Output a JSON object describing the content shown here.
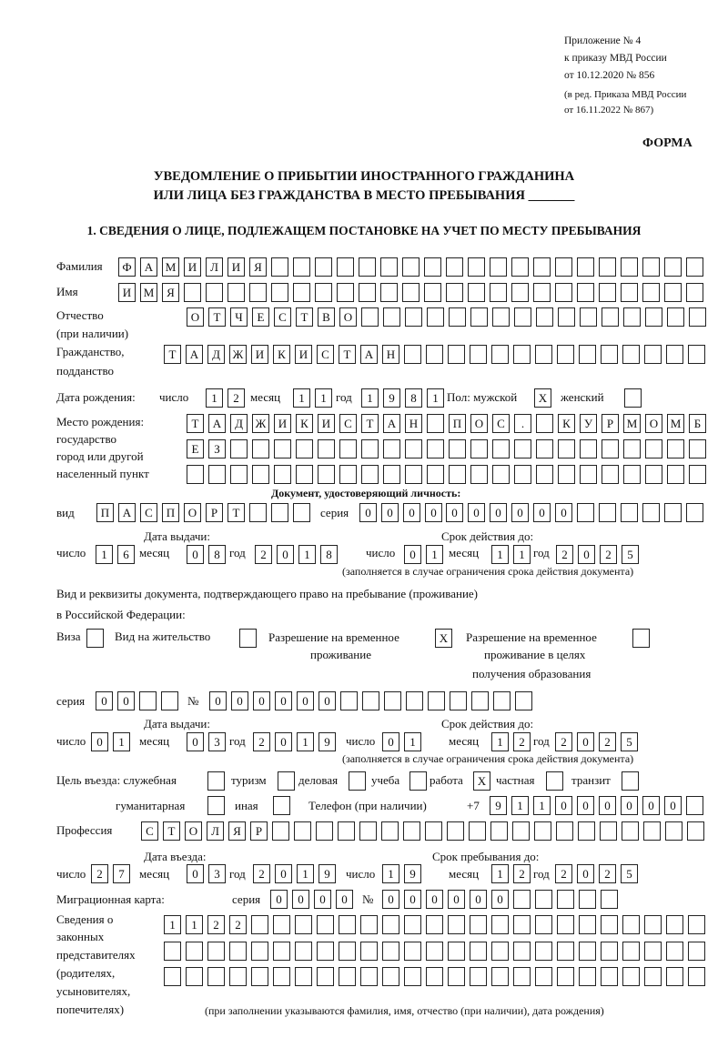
{
  "header": {
    "line1": "Приложение № 4",
    "line2": "к приказу МВД России",
    "line3": "от 10.12.2020 № 856",
    "line4": "(в ред. Приказа МВД России",
    "line5": "от 16.11.2022 № 867)",
    "form_label": "ФОРМА"
  },
  "title": {
    "line1": "УВЕДОМЛЕНИЕ О ПРИБЫТИИ ИНОСТРАННОГО ГРАЖДАНИНА",
    "line2": "ИЛИ ЛИЦА БЕЗ ГРАЖДАНСТВА В МЕСТО ПРЕБЫВАНИЯ _______"
  },
  "section1": "1. СВЕДЕНИЯ О ЛИЦЕ, ПОДЛЕЖАЩЕМ ПОСТАНОВКЕ НА УЧЕТ ПО МЕСТУ ПРЕБЫВАНИЯ",
  "labels": {
    "surname": "Фамилия",
    "name": "Имя",
    "patronymic": "Отчество",
    "patronymic2": "(при наличии)",
    "citizenship": "Гражданство,",
    "citizenship2": "подданство",
    "dob": "Дата рождения:",
    "day": "число",
    "month": "месяц",
    "year": "год",
    "sex": "Пол: мужской",
    "female": "женский",
    "pob1": "Место рождения:",
    "pob2": "государство",
    "pob3": "город или другой",
    "pob4": "населенный пункт",
    "id_doc": "Документ, удостоверяющий личность:",
    "kind": "вид",
    "series": "серия",
    "number": "№",
    "issue_date": "Дата выдачи:",
    "valid_until": "Срок действия до:",
    "validity_note": "(заполняется в случае ограничения срока действия документа)",
    "right_doc1": "Вид и реквизиты документа, подтверждающего право на пребывание (проживание)",
    "right_doc2": "в Российской Федерации:",
    "visa": "Виза",
    "residence": "Вид на жительство",
    "trp1": "Разрешение на временное",
    "trp2": "проживание",
    "trp_edu1": "Разрешение на временное",
    "trp_edu2": "проживание в целях",
    "trp_edu3": "получения образования",
    "purpose": "Цель въезда: служебная",
    "tourism": "туризм",
    "business": "деловая",
    "study": "учеба",
    "work": "работа",
    "private": "частная",
    "transit": "транзит",
    "humanitarian": "гуманитарная",
    "other": "иная",
    "phone": "Телефон (при наличии)",
    "phone_prefix": "+7",
    "profession": "Профессия",
    "entry_date": "Дата въезда:",
    "stay_until": "Срок пребывания до:",
    "migration_card": "Миграционная карта:",
    "reps1": "Сведения о",
    "reps2": "законных",
    "reps3": "представителях",
    "reps4": "(родителях,",
    "reps5": "усыновителях,",
    "reps6": "попечителях)",
    "reps_note": "(при заполнении указываются фамилия, имя, отчество (при наличии), дата рождения)"
  },
  "fields": {
    "surname": [
      "Ф",
      "А",
      "М",
      "И",
      "Л",
      "И",
      "Я",
      "",
      "",
      "",
      "",
      "",
      "",
      "",
      "",
      "",
      "",
      "",
      "",
      "",
      "",
      "",
      "",
      "",
      "",
      "",
      ""
    ],
    "name": [
      "И",
      "М",
      "Я",
      "",
      "",
      "",
      "",
      "",
      "",
      "",
      "",
      "",
      "",
      "",
      "",
      "",
      "",
      "",
      "",
      "",
      "",
      "",
      "",
      "",
      "",
      "",
      ""
    ],
    "patronymic": [
      "О",
      "Т",
      "Ч",
      "Е",
      "С",
      "Т",
      "В",
      "О",
      "",
      "",
      "",
      "",
      "",
      "",
      "",
      "",
      "",
      "",
      "",
      "",
      "",
      "",
      "",
      ""
    ],
    "citizenship": [
      "Т",
      "А",
      "Д",
      "Ж",
      "И",
      "К",
      "И",
      "С",
      "Т",
      "А",
      "Н",
      "",
      "",
      "",
      "",
      "",
      "",
      "",
      "",
      "",
      "",
      "",
      "",
      "",
      ""
    ],
    "dob_day": [
      "1",
      "2"
    ],
    "dob_month": [
      "1",
      "1"
    ],
    "dob_year": [
      "1",
      "9",
      "8",
      "1"
    ],
    "sex_male": [
      "X"
    ],
    "sex_female": [
      ""
    ],
    "pob1": [
      "Т",
      "А",
      "Д",
      "Ж",
      "И",
      "К",
      "И",
      "С",
      "Т",
      "А",
      "Н",
      "",
      "П",
      "О",
      "С",
      ".",
      "",
      "К",
      "У",
      "Р",
      "М",
      "О",
      "М",
      "Б"
    ],
    "pob2": [
      "Е",
      "З",
      "",
      "",
      "",
      "",
      "",
      "",
      "",
      "",
      "",
      "",
      "",
      "",
      "",
      "",
      "",
      "",
      "",
      "",
      "",
      "",
      "",
      ""
    ],
    "pob3": [
      "",
      "",
      "",
      "",
      "",
      "",
      "",
      "",
      "",
      "",
      "",
      "",
      "",
      "",
      "",
      "",
      "",
      "",
      "",
      "",
      "",
      "",
      "",
      ""
    ],
    "id_kind": [
      "П",
      "А",
      "С",
      "П",
      "О",
      "Р",
      "Т",
      "",
      "",
      ""
    ],
    "id_series": [
      "0",
      "0",
      "0",
      "0"
    ],
    "id_number": [
      "0",
      "0",
      "0",
      "0",
      "0",
      "0",
      "",
      "",
      "",
      "",
      "",
      ""
    ],
    "id_issue_day": [
      "1",
      "6"
    ],
    "id_issue_month": [
      "0",
      "8"
    ],
    "id_issue_year": [
      "2",
      "0",
      "1",
      "8"
    ],
    "id_valid_day": [
      "0",
      "1"
    ],
    "id_valid_month": [
      "1",
      "1"
    ],
    "id_valid_year": [
      "2",
      "0",
      "2",
      "5"
    ],
    "visa": [
      ""
    ],
    "residence": [
      ""
    ],
    "trp": [
      "X"
    ],
    "trp_edu": [
      ""
    ],
    "rd_series": [
      "0",
      "0",
      "",
      ""
    ],
    "rd_number": [
      "0",
      "0",
      "0",
      "0",
      "0",
      "0",
      "",
      "",
      "",
      "",
      "",
      "",
      "",
      "",
      ""
    ],
    "rd_issue_day": [
      "0",
      "1"
    ],
    "rd_issue_month": [
      "0",
      "3"
    ],
    "rd_issue_year": [
      "2",
      "0",
      "1",
      "9"
    ],
    "rd_valid_day": [
      "0",
      "1"
    ],
    "rd_valid_month": [
      "1",
      "2"
    ],
    "rd_valid_year": [
      "2",
      "0",
      "2",
      "5"
    ],
    "p_official": [
      ""
    ],
    "p_tourism": [
      ""
    ],
    "p_business": [
      ""
    ],
    "p_study": [
      ""
    ],
    "p_work": [
      "X"
    ],
    "p_private": [
      ""
    ],
    "p_transit": [
      ""
    ],
    "p_humanitarian": [
      ""
    ],
    "p_other": [
      ""
    ],
    "phone": [
      "9",
      "1",
      "1",
      "0",
      "0",
      "0",
      "0",
      "0",
      "0",
      ""
    ],
    "profession": [
      "С",
      "Т",
      "О",
      "Л",
      "Я",
      "Р",
      "",
      "",
      "",
      "",
      "",
      "",
      "",
      "",
      "",
      "",
      "",
      "",
      "",
      "",
      "",
      "",
      "",
      "",
      "",
      ""
    ],
    "entry_day": [
      "2",
      "7"
    ],
    "entry_month": [
      "0",
      "3"
    ],
    "entry_year": [
      "2",
      "0",
      "1",
      "9"
    ],
    "stay_day": [
      "1",
      "9"
    ],
    "stay_month": [
      "1",
      "2"
    ],
    "stay_year": [
      "2",
      "0",
      "2",
      "5"
    ],
    "mc_series": [
      "0",
      "0",
      "0",
      "0"
    ],
    "mc_number": [
      "0",
      "0",
      "0",
      "0",
      "0",
      "0",
      "",
      "",
      "",
      "",
      ""
    ],
    "reps1": [
      "1",
      "1",
      "2",
      "2",
      "",
      "",
      "",
      "",
      "",
      "",
      "",
      "",
      "",
      "",
      "",
      "",
      "",
      "",
      "",
      "",
      "",
      "",
      "",
      "",
      ""
    ],
    "reps2": [
      "",
      "",
      "",
      "",
      "",
      "",
      "",
      "",
      "",
      "",
      "",
      "",
      "",
      "",
      "",
      "",
      "",
      "",
      "",
      "",
      "",
      "",
      "",
      "",
      ""
    ],
    "reps3": [
      "",
      "",
      "",
      "",
      "",
      "",
      "",
      "",
      "",
      "",
      "",
      "",
      "",
      "",
      "",
      "",
      "",
      "",
      "",
      "",
      "",
      "",
      "",
      "",
      ""
    ]
  }
}
